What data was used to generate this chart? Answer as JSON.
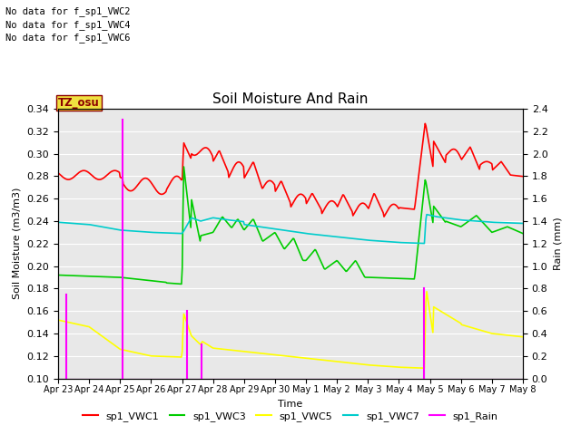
{
  "title": "Soil Moisture And Rain",
  "xlabel": "Time",
  "ylabel_left": "Soil Moisture (m3/m3)",
  "ylabel_right": "Rain (mm)",
  "no_data_labels": [
    "No data for f_sp1_VWC2",
    "No data for f_sp1_VWC4",
    "No data for f_sp1_VWC6"
  ],
  "watermark": "TZ_osu",
  "ylim_left": [
    0.1,
    0.34
  ],
  "ylim_right": [
    0.0,
    2.4
  ],
  "yticks_left": [
    0.1,
    0.12,
    0.14,
    0.16,
    0.18,
    0.2,
    0.22,
    0.24,
    0.26,
    0.28,
    0.3,
    0.32,
    0.34
  ],
  "yticks_right": [
    0.0,
    0.2,
    0.4,
    0.6,
    0.8,
    1.0,
    1.2,
    1.4,
    1.6,
    1.8,
    2.0,
    2.2,
    2.4
  ],
  "xtick_labels": [
    "Apr 23",
    "Apr 24",
    "Apr 25",
    "Apr 26",
    "Apr 27",
    "Apr 28",
    "Apr 29",
    "Apr 30",
    "May 1",
    "May 2",
    "May 3",
    "May 4",
    "May 5",
    "May 6",
    "May 7",
    "May 8"
  ],
  "colors": {
    "sp1_VWC1": "#ff0000",
    "sp1_VWC3": "#00cc00",
    "sp1_VWC5": "#ffff00",
    "sp1_VWC7": "#00cccc",
    "sp1_Rain": "#ff00ff"
  },
  "background_color": "#e8e8e8",
  "grid_color": "#ffffff",
  "linewidth": 1.2,
  "rain_spikes": [
    {
      "day": 0.25,
      "height": 0.175
    },
    {
      "day": 2.08,
      "height": 0.33
    },
    {
      "day": 4.15,
      "height": 0.16
    },
    {
      "day": 4.62,
      "height": 0.13
    },
    {
      "day": 11.82,
      "height": 0.18
    }
  ],
  "rain_baseline_y": 0.1,
  "xlim": [
    0,
    15
  ],
  "figsize": [
    6.4,
    4.8
  ],
  "dpi": 100
}
